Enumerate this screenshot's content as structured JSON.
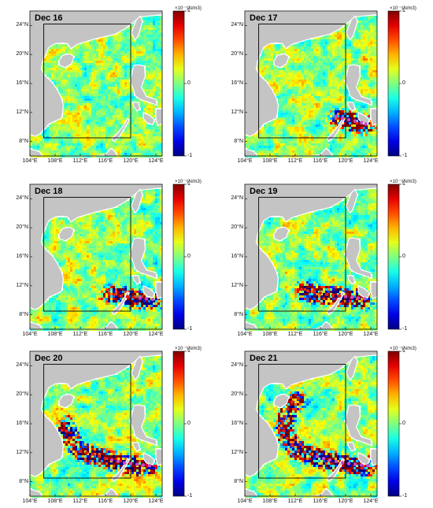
{
  "panels": [
    {
      "title": "Dec 16",
      "hurricane": false,
      "track": []
    },
    {
      "title": "Dec 17",
      "hurricane": false,
      "track": [
        [
          118.5,
          11.5
        ],
        [
          119.5,
          11.2
        ],
        [
          120.5,
          11.0
        ],
        [
          121.5,
          10.8
        ],
        [
          122.5,
          10.6
        ],
        [
          123.2,
          10.4
        ]
      ]
    },
    {
      "title": "Dec 18",
      "hurricane": false,
      "track": [
        [
          116.5,
          11.0
        ],
        [
          117.5,
          10.8
        ],
        [
          118.5,
          10.6
        ],
        [
          119.5,
          10.5
        ],
        [
          120.5,
          10.4
        ],
        [
          121.5,
          10.3
        ],
        [
          122.5,
          10.2
        ],
        [
          123.5,
          10.1
        ]
      ]
    },
    {
      "title": "Dec 19",
      "hurricane": false,
      "track": [
        [
          113.0,
          11.5
        ],
        [
          114.0,
          11.3
        ],
        [
          115.0,
          11.1
        ],
        [
          116.0,
          11.0
        ],
        [
          117.0,
          10.8
        ],
        [
          118.0,
          10.7
        ],
        [
          119.0,
          10.6
        ],
        [
          120.0,
          10.5
        ],
        [
          121.0,
          10.4
        ],
        [
          122.0,
          10.3
        ],
        [
          123.0,
          10.2
        ]
      ]
    },
    {
      "title": "Dec 20",
      "hurricane": false,
      "track": [
        [
          109.5,
          16.0
        ],
        [
          109.8,
          15.0
        ],
        [
          110.3,
          14.0
        ],
        [
          111.0,
          13.0
        ],
        [
          112.0,
          12.2
        ],
        [
          113.0,
          12.0
        ],
        [
          114.0,
          11.8
        ],
        [
          115.0,
          11.5
        ],
        [
          116.0,
          11.2
        ],
        [
          117.0,
          11.0
        ],
        [
          118.0,
          10.8
        ],
        [
          119.0,
          10.6
        ],
        [
          120.0,
          10.5
        ],
        [
          121.0,
          10.4
        ],
        [
          122.0,
          10.3
        ],
        [
          123.0,
          10.2
        ]
      ]
    },
    {
      "title": "Dec 21",
      "hurricane": false,
      "track": [
        [
          112.5,
          19.5
        ],
        [
          111.5,
          19.0
        ],
        [
          110.8,
          18.0
        ],
        [
          110.3,
          17.0
        ],
        [
          110.0,
          16.0
        ],
        [
          110.2,
          15.0
        ],
        [
          110.7,
          14.0
        ],
        [
          111.5,
          13.0
        ],
        [
          112.5,
          12.3
        ],
        [
          113.5,
          12.0
        ],
        [
          114.5,
          11.8
        ],
        [
          115.5,
          11.5
        ],
        [
          116.5,
          11.2
        ],
        [
          117.5,
          11.0
        ],
        [
          118.5,
          10.8
        ],
        [
          119.5,
          10.6
        ],
        [
          120.5,
          10.5
        ],
        [
          121.5,
          10.4
        ],
        [
          122.5,
          10.3
        ],
        [
          123.5,
          10.2
        ]
      ]
    }
  ],
  "axes": {
    "lon_ticks": [
      "104°E",
      "108°E",
      "112°E",
      "116°E",
      "120°E",
      "124°E"
    ],
    "lat_ticks": [
      "24°N",
      "20°N",
      "16°N",
      "12°N",
      "8°N"
    ],
    "lon_values": [
      104,
      108,
      112,
      116,
      120,
      124
    ],
    "lat_values": [
      24,
      20,
      16,
      12,
      8
    ],
    "lon_range": [
      104,
      125
    ],
    "lat_range": [
      6,
      26
    ]
  },
  "colorbar": {
    "max_label": "1",
    "mid_label": "0",
    "min_label": "-1",
    "unit": "×10⁻⁷(N/m3)",
    "colormap": "jet"
  },
  "colors": {
    "land": "#c4c4c4",
    "coast": "#ffffff",
    "track_red": "#e0201c",
    "track_magenta": "#cc44cc",
    "box": "#000000"
  }
}
